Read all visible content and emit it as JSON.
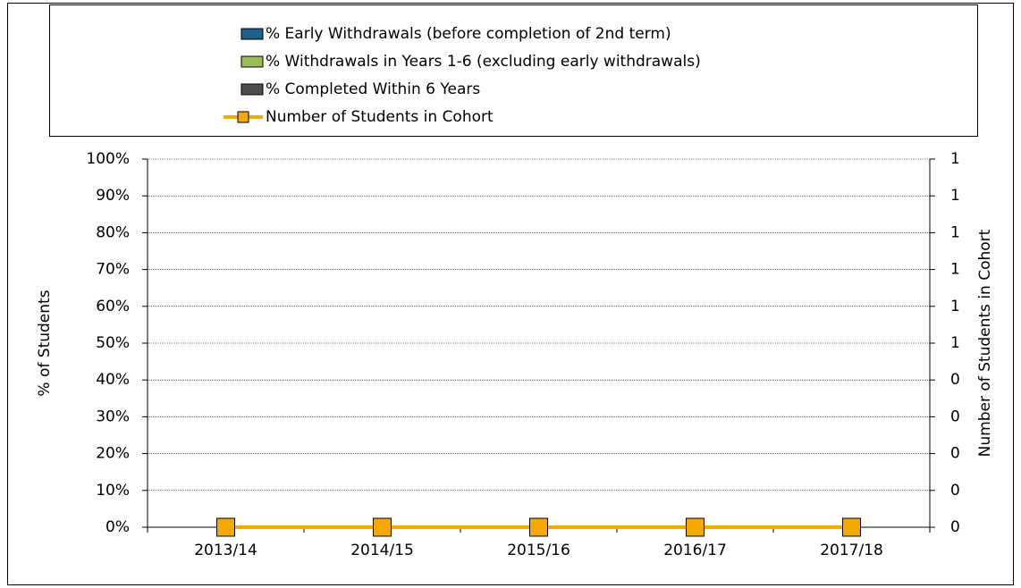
{
  "chart_data": {
    "type": "bar",
    "stacked": true,
    "categories": [
      "2013/14",
      "2014/15",
      "2015/16",
      "2016/17",
      "2017/18"
    ],
    "series": [
      {
        "name": "% Early Withdrawals (before completion of 2nd term)",
        "color": "#1f5f8b",
        "values": [
          0,
          0,
          0,
          0,
          0
        ]
      },
      {
        "name": "% Withdrawals in Years 1-6 (excluding early withdrawals)",
        "color": "#9bbb59",
        "values": [
          0,
          0,
          0,
          0,
          0
        ]
      },
      {
        "name": "% Completed Within 6 Years",
        "color": "#4d4d4d",
        "values": [
          0,
          0,
          0,
          0,
          0
        ]
      },
      {
        "name": "Number of Students in Cohort",
        "type": "line",
        "axis": "y2",
        "color": "#f5a800",
        "values": [
          0,
          0,
          0,
          0,
          0
        ]
      }
    ],
    "ylabel": "% of Students",
    "y2label": "Number of Students in Cohort",
    "ylim": [
      0,
      100
    ],
    "yticks": [
      {
        "value": 0,
        "label": "0%"
      },
      {
        "value": 10,
        "label": "10%"
      },
      {
        "value": 20,
        "label": "20%"
      },
      {
        "value": 30,
        "label": "30%"
      },
      {
        "value": 40,
        "label": "40%"
      },
      {
        "value": 50,
        "label": "50%"
      },
      {
        "value": 60,
        "label": "60%"
      },
      {
        "value": 70,
        "label": "70%"
      },
      {
        "value": 80,
        "label": "80%"
      },
      {
        "value": 90,
        "label": "90%"
      },
      {
        "value": 100,
        "label": "100%"
      }
    ],
    "y2lim": [
      0,
      1
    ],
    "y2ticks": [
      0,
      {
        "value": 0.1,
        "label": "0"
      },
      {
        "value": 0.2,
        "label": "0"
      },
      {
        "value": 0.3,
        "label": "0"
      },
      {
        "value": 0.4,
        "label": "0"
      },
      {
        "value": 0.5,
        "label": "1"
      },
      {
        "value": 0.6,
        "label": "1"
      },
      {
        "value": 0.7,
        "label": "1"
      },
      {
        "value": 0.8,
        "label": "1"
      },
      {
        "value": 0.9,
        "label": "1"
      },
      1
    ],
    "grid": true,
    "legend": "top"
  }
}
